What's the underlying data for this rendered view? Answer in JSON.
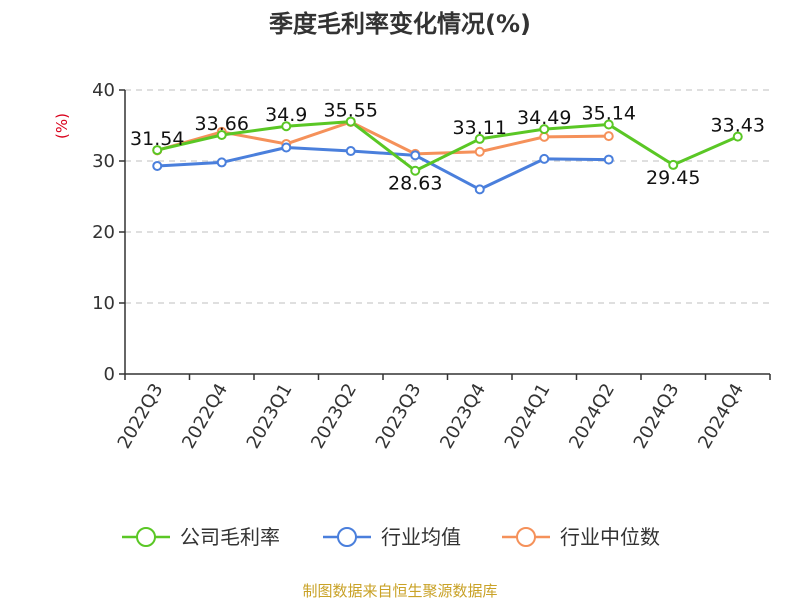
{
  "chart_data": {
    "type": "line",
    "title": "季度毛利率变化情况(%)",
    "ylabel": "(%)",
    "xlabel": "",
    "ylim": [
      0,
      40
    ],
    "yticks": [
      0,
      10,
      20,
      30,
      40
    ],
    "grid": true,
    "legend_position": "bottom",
    "categories": [
      "2022Q3",
      "2022Q4",
      "2023Q1",
      "2023Q2",
      "2023Q3",
      "2023Q4",
      "2024Q1",
      "2024Q2",
      "2024Q3",
      "2024Q4"
    ],
    "series": [
      {
        "name": "公司毛利率",
        "color": "#5ac725",
        "values": [
          31.54,
          33.66,
          34.9,
          35.55,
          28.63,
          33.11,
          34.49,
          35.14,
          29.45,
          33.43
        ],
        "labels": [
          "31.54",
          "33.66",
          "34.9",
          "35.55",
          "28.63",
          "33.11",
          "34.49",
          "35.14",
          "29.45",
          "33.43"
        ]
      },
      {
        "name": "行业均值",
        "color": "#4a7fdc",
        "values": [
          29.3,
          29.8,
          31.9,
          31.4,
          30.8,
          26.0,
          30.3,
          30.2,
          null,
          null
        ]
      },
      {
        "name": "行业中位数",
        "color": "#f5915a",
        "values": [
          31.5,
          34.1,
          32.4,
          35.5,
          31.0,
          31.3,
          33.4,
          33.5,
          null,
          null
        ]
      }
    ]
  },
  "footer": {
    "source": "制图数据来自恒生聚源数据库"
  }
}
